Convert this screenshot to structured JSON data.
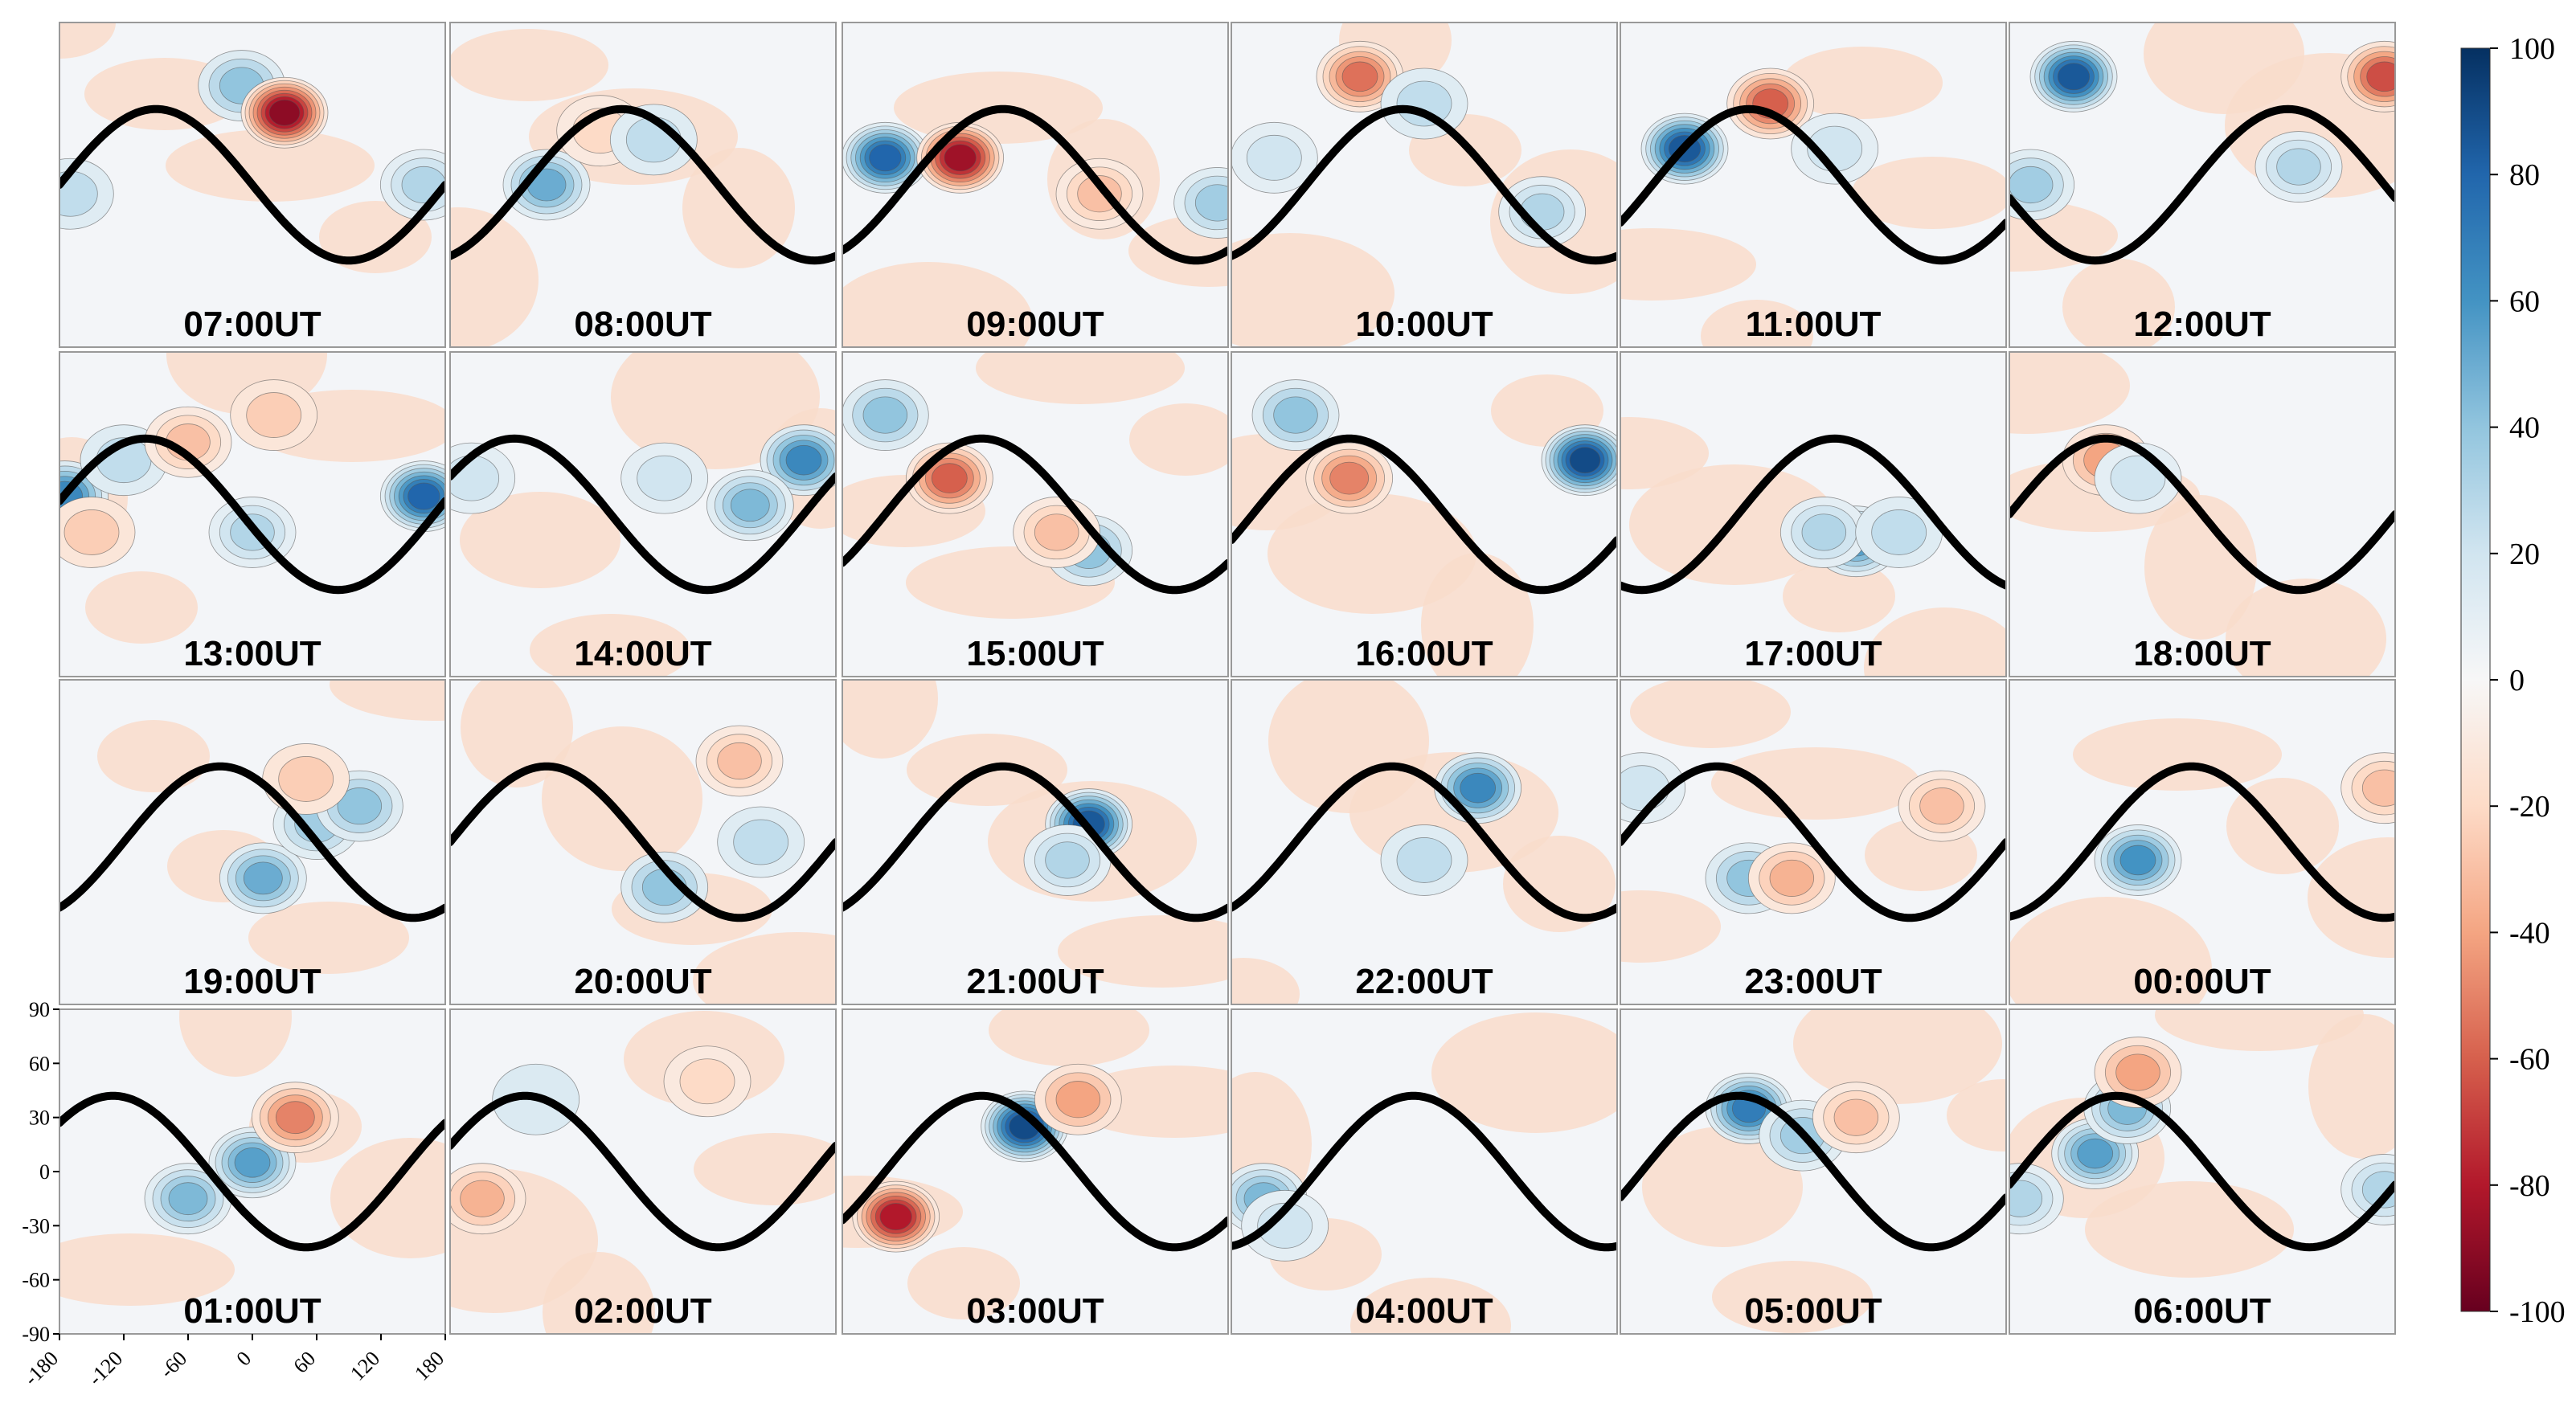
{
  "chart_data": {
    "type": "heatmap",
    "layout": {
      "rows": 4,
      "cols": 6
    },
    "panels": [
      {
        "label": "07:00UT",
        "track_lon": -180,
        "features": [
          {
            "lon": -10,
            "lat": 55,
            "v": 40
          },
          {
            "lon": 30,
            "lat": 40,
            "v": -90
          },
          {
            "lon": 160,
            "lat": 0,
            "v": 30
          },
          {
            "lon": -170,
            "lat": -5,
            "v": 25
          }
        ]
      },
      {
        "label": "08:00UT",
        "track_lon": -110,
        "features": [
          {
            "lon": -90,
            "lat": 0,
            "v": 50
          },
          {
            "lon": -40,
            "lat": 30,
            "v": -20
          },
          {
            "lon": 10,
            "lat": 25,
            "v": 25
          }
        ]
      },
      {
        "label": "09:00UT",
        "track_lon": -120,
        "features": [
          {
            "lon": -140,
            "lat": 15,
            "v": 80
          },
          {
            "lon": -70,
            "lat": 15,
            "v": -85
          },
          {
            "lon": 170,
            "lat": -10,
            "v": 35
          },
          {
            "lon": 60,
            "lat": -5,
            "v": -30
          }
        ]
      },
      {
        "label": "10:00UT",
        "track_lon": -110,
        "features": [
          {
            "lon": -60,
            "lat": 60,
            "v": -55
          },
          {
            "lon": 0,
            "lat": 45,
            "v": 25
          },
          {
            "lon": 110,
            "lat": -15,
            "v": 30
          },
          {
            "lon": -140,
            "lat": 15,
            "v": 20
          }
        ]
      },
      {
        "label": "11:00UT",
        "track_lon": -150,
        "features": [
          {
            "lon": -120,
            "lat": 20,
            "v": 85
          },
          {
            "lon": -40,
            "lat": 45,
            "v": -60
          },
          {
            "lon": 20,
            "lat": 20,
            "v": 20
          }
        ]
      },
      {
        "label": "12:00UT",
        "track_lon": -10,
        "features": [
          {
            "lon": -120,
            "lat": 60,
            "v": 85
          },
          {
            "lon": 170,
            "lat": 60,
            "v": -65
          },
          {
            "lon": -160,
            "lat": 0,
            "v": 35
          },
          {
            "lon": 90,
            "lat": 10,
            "v": 30
          }
        ]
      },
      {
        "label": "13:00UT",
        "track_lon": -190,
        "features": [
          {
            "lon": -175,
            "lat": 10,
            "v": 65
          },
          {
            "lon": -120,
            "lat": 30,
            "v": 25
          },
          {
            "lon": -60,
            "lat": 40,
            "v": -30
          },
          {
            "lon": 20,
            "lat": 55,
            "v": -25
          },
          {
            "lon": 160,
            "lat": 10,
            "v": 80
          },
          {
            "lon": -150,
            "lat": -10,
            "v": -25
          },
          {
            "lon": 0,
            "lat": -10,
            "v": 30
          }
        ]
      },
      {
        "label": "14:00UT",
        "track_lon": -210,
        "features": [
          {
            "lon": 150,
            "lat": 30,
            "v": 65
          },
          {
            "lon": 100,
            "lat": 5,
            "v": 45
          },
          {
            "lon": -160,
            "lat": 20,
            "v": 20
          },
          {
            "lon": 20,
            "lat": 20,
            "v": 20
          }
        ]
      },
      {
        "label": "15:00UT",
        "track_lon": -140,
        "features": [
          {
            "lon": -140,
            "lat": 55,
            "v": 40
          },
          {
            "lon": -80,
            "lat": 20,
            "v": -60
          },
          {
            "lon": 50,
            "lat": -20,
            "v": 40
          },
          {
            "lon": 20,
            "lat": -10,
            "v": -30
          }
        ]
      },
      {
        "label": "16:00UT",
        "track_lon": -160,
        "features": [
          {
            "lon": -120,
            "lat": 55,
            "v": 40
          },
          {
            "lon": -70,
            "lat": 20,
            "v": -50
          },
          {
            "lon": 150,
            "lat": 30,
            "v": 90
          }
        ]
      },
      {
        "label": "17:00UT",
        "track_lon": -70,
        "features": [
          {
            "lon": 40,
            "lat": -15,
            "v": 55
          },
          {
            "lon": 10,
            "lat": -10,
            "v": 30
          },
          {
            "lon": 80,
            "lat": -10,
            "v": 25
          }
        ]
      },
      {
        "label": "18:00UT",
        "track_lon": -180,
        "features": [
          {
            "lon": -90,
            "lat": 30,
            "v": -40
          },
          {
            "lon": -60,
            "lat": 20,
            "v": 20
          }
        ]
      },
      {
        "label": "19:00UT",
        "track_lon": -120,
        "features": [
          {
            "lon": 10,
            "lat": -20,
            "v": 50
          },
          {
            "lon": 60,
            "lat": 10,
            "v": 35
          },
          {
            "lon": 100,
            "lat": 20,
            "v": 40
          },
          {
            "lon": 50,
            "lat": 35,
            "v": -25
          }
        ]
      },
      {
        "label": "20:00UT",
        "track_lon": -180,
        "features": [
          {
            "lon": 20,
            "lat": -25,
            "v": 40
          },
          {
            "lon": 90,
            "lat": 45,
            "v": -30
          },
          {
            "lon": 110,
            "lat": 0,
            "v": 25
          }
        ]
      },
      {
        "label": "21:00UT",
        "track_lon": -120,
        "features": [
          {
            "lon": 50,
            "lat": 10,
            "v": 85
          },
          {
            "lon": 30,
            "lat": -10,
            "v": 30
          }
        ]
      },
      {
        "label": "22:00UT",
        "track_lon": -120,
        "features": [
          {
            "lon": 50,
            "lat": 30,
            "v": 65
          },
          {
            "lon": 0,
            "lat": -10,
            "v": 25
          }
        ]
      },
      {
        "label": "23:00UT",
        "track_lon": -180,
        "features": [
          {
            "lon": -60,
            "lat": -20,
            "v": 40
          },
          {
            "lon": -20,
            "lat": -20,
            "v": -35
          },
          {
            "lon": 120,
            "lat": 20,
            "v": -30
          },
          {
            "lon": -160,
            "lat": 30,
            "v": 20
          }
        ]
      },
      {
        "label": "00:00UT",
        "track_lon": -100,
        "features": [
          {
            "lon": -60,
            "lat": -10,
            "v": 60
          },
          {
            "lon": 170,
            "lat": 30,
            "v": -30
          }
        ]
      },
      {
        "label": "01:00UT",
        "track_lon": -220,
        "features": [
          {
            "lon": -60,
            "lat": -15,
            "v": 45
          },
          {
            "lon": 0,
            "lat": 5,
            "v": 55
          },
          {
            "lon": 40,
            "lat": 30,
            "v": -50
          }
        ]
      },
      {
        "label": "02:00UT",
        "track_lon": -200,
        "features": [
          {
            "lon": -150,
            "lat": -15,
            "v": -35
          },
          {
            "lon": 60,
            "lat": 50,
            "v": -20
          },
          {
            "lon": -100,
            "lat": 40,
            "v": 15
          }
        ]
      },
      {
        "label": "03:00UT",
        "track_lon": -140,
        "features": [
          {
            "lon": -10,
            "lat": 25,
            "v": 90
          },
          {
            "lon": -130,
            "lat": -25,
            "v": -80
          },
          {
            "lon": 40,
            "lat": 40,
            "v": -40
          }
        ]
      },
      {
        "label": "04:00UT",
        "track_lon": -100,
        "features": [
          {
            "lon": -150,
            "lat": -15,
            "v": 45
          },
          {
            "lon": -130,
            "lat": -30,
            "v": 20
          }
        ]
      },
      {
        "label": "05:00UT",
        "track_lon": -160,
        "features": [
          {
            "lon": -60,
            "lat": 35,
            "v": 70
          },
          {
            "lon": -10,
            "lat": 20,
            "v": 35
          },
          {
            "lon": 40,
            "lat": 30,
            "v": -30
          }
        ]
      },
      {
        "label": "06:00UT",
        "track_lon": -170,
        "features": [
          {
            "lon": -100,
            "lat": 10,
            "v": 55
          },
          {
            "lon": -70,
            "lat": 35,
            "v": 45
          },
          {
            "lon": -60,
            "lat": 55,
            "v": -40
          },
          {
            "lon": -170,
            "lat": -15,
            "v": 30
          },
          {
            "lon": 170,
            "lat": -10,
            "v": 30
          }
        ]
      }
    ],
    "xticks": [
      "-180",
      "-120",
      "-60",
      "0",
      "60",
      "120",
      "180"
    ],
    "yticks": [
      "90",
      "60",
      "30",
      "0",
      "-30",
      "-60",
      "-90"
    ],
    "xlim": [
      -180,
      180
    ],
    "ylim": [
      -90,
      90
    ],
    "colorbar": {
      "ticks": [
        "100",
        "80",
        "60",
        "40",
        "20",
        "0",
        "-20",
        "-40",
        "-60",
        "-80",
        "-100"
      ],
      "range": [
        -100,
        100
      ],
      "colors": {
        "max": "#08306b",
        "mid": "#f7f7f7",
        "min": "#67001f"
      }
    }
  }
}
